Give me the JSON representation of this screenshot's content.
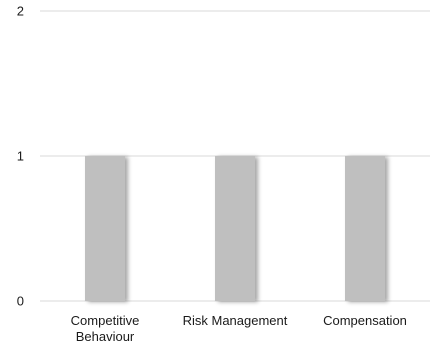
{
  "chart_data": {
    "type": "bar",
    "categories": [
      [
        "Competitive",
        "Behaviour"
      ],
      [
        "Risk Management"
      ],
      [
        "Compensation"
      ]
    ],
    "values": [
      1,
      1,
      1
    ],
    "ylim": [
      0,
      2
    ],
    "yticks": [
      "0",
      "1",
      "2"
    ],
    "title": "",
    "xlabel": "",
    "ylabel": "",
    "grid": true,
    "legend": "none",
    "colors": {
      "bar": "#bfbfbf",
      "bar_shadow": "#9a9a9a",
      "grid": "#d9d9d9",
      "text": "#1a1a1a"
    }
  }
}
